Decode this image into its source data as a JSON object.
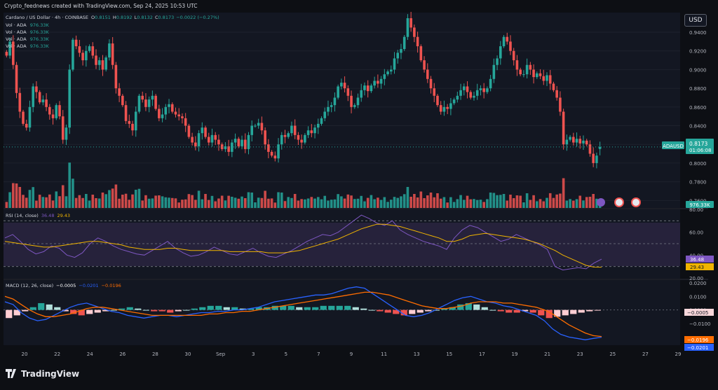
{
  "header": {
    "caption": "Crypto_feednews created with TradingView.com, Sep 24, 2025 10:53 UTC"
  },
  "currency_button": "USD",
  "legend": {
    "symbol": "Cardano / US Dollar · 4h · COINBASE",
    "o_label": "O",
    "o": "0.8151",
    "h_label": "H",
    "h": "0.8192",
    "l_label": "L",
    "l": "0.8132",
    "c_label": "C",
    "c": "0.8173",
    "change": "−0.0022 (−0.27%)",
    "vol_rows": [
      {
        "label": "Vol · ADA",
        "value": "976.33K"
      },
      {
        "label": "Vol · ADA",
        "value": "976.33K"
      },
      {
        "label": "Vol · ADA",
        "value": "976.33K"
      },
      {
        "label": "Vol · ADA",
        "value": "976.33K"
      }
    ]
  },
  "price_badge": {
    "symbol": "ADAUSD",
    "price": "0.8173",
    "countdown": "01:06:08"
  },
  "volume_badge": "976.33K",
  "rsi": {
    "label": "RSI (14, close)",
    "value1": "36.48",
    "value2": "29.43"
  },
  "macd": {
    "label": "MACD (12, 26, close)",
    "hist": "−0.0005",
    "macd": "−0.0201",
    "signal": "−0.0196"
  },
  "logo": "TradingView",
  "colors": {
    "up": "#26a69a",
    "down": "#ef5350",
    "rsi": "#7e57c2",
    "rsi_ma": "#f0b400",
    "macd": "#2962ff",
    "signal": "#ff6d00"
  },
  "chart_data": [
    {
      "type": "candlestick",
      "title": "Cardano / US Dollar · 4h · COINBASE",
      "x": [
        "20",
        "22",
        "24",
        "26",
        "28",
        "30",
        "Sep",
        "3",
        "5",
        "7",
        "9",
        "11",
        "13",
        "15",
        "17",
        "19",
        "21",
        "23",
        "25",
        "27",
        "29"
      ],
      "price_axis_ticks": [
        "0.9400",
        "0.9200",
        "0.9000",
        "0.8800",
        "0.8600",
        "0.8400",
        "0.8200",
        "0.8000",
        "0.7800",
        "0.7600"
      ],
      "ylim": [
        0.752,
        0.961
      ],
      "last_price": 0.8173,
      "closes": [
        0.915,
        0.93,
        0.905,
        0.875,
        0.855,
        0.842,
        0.838,
        0.86,
        0.882,
        0.876,
        0.865,
        0.868,
        0.86,
        0.852,
        0.848,
        0.862,
        0.85,
        0.825,
        0.838,
        0.9,
        0.932,
        0.925,
        0.918,
        0.91,
        0.92,
        0.925,
        0.915,
        0.905,
        0.91,
        0.9,
        0.913,
        0.928,
        0.905,
        0.88,
        0.872,
        0.862,
        0.845,
        0.842,
        0.835,
        0.855,
        0.872,
        0.868,
        0.86,
        0.868,
        0.872,
        0.858,
        0.848,
        0.852,
        0.86,
        0.863,
        0.855,
        0.852,
        0.85,
        0.848,
        0.84,
        0.828,
        0.822,
        0.818,
        0.832,
        0.838,
        0.828,
        0.822,
        0.83,
        0.825,
        0.82,
        0.815,
        0.818,
        0.812,
        0.822,
        0.826,
        0.818,
        0.825,
        0.815,
        0.83,
        0.84,
        0.84,
        0.843,
        0.835,
        0.82,
        0.812,
        0.808,
        0.805,
        0.82,
        0.83,
        0.828,
        0.832,
        0.84,
        0.83,
        0.825,
        0.822,
        0.83,
        0.835,
        0.832,
        0.838,
        0.842,
        0.848,
        0.855,
        0.86,
        0.862,
        0.87,
        0.882,
        0.886,
        0.88,
        0.872,
        0.86,
        0.862,
        0.87,
        0.878,
        0.883,
        0.877,
        0.883,
        0.888,
        0.885,
        0.89,
        0.895,
        0.898,
        0.9,
        0.912,
        0.918,
        0.922,
        0.935,
        0.955,
        0.945,
        0.935,
        0.925,
        0.91,
        0.9,
        0.89,
        0.88,
        0.872,
        0.862,
        0.855,
        0.86,
        0.858,
        0.864,
        0.868,
        0.872,
        0.878,
        0.882,
        0.876,
        0.87,
        0.872,
        0.878,
        0.88,
        0.876,
        0.88,
        0.89,
        0.905,
        0.912,
        0.925,
        0.935,
        0.93,
        0.92,
        0.91,
        0.9,
        0.895,
        0.895,
        0.905,
        0.9,
        0.892,
        0.896,
        0.893,
        0.888,
        0.894,
        0.885,
        0.878,
        0.87,
        0.855,
        0.82,
        0.825,
        0.828,
        0.822,
        0.826,
        0.821,
        0.824,
        0.82,
        0.81,
        0.8,
        0.808,
        0.8173
      ],
      "volume": {
        "last": "976.33K"
      }
    },
    {
      "type": "line",
      "title": "RSI (14, close)",
      "ylim": [
        20,
        80
      ],
      "ticks": [
        "80.00",
        "60.00",
        "40.00",
        "20.00"
      ],
      "levels": [
        70,
        50,
        30
      ],
      "series": [
        {
          "name": "RSI",
          "last": 36.48,
          "values": [
            55,
            58,
            52,
            45,
            41,
            43,
            48,
            46,
            40,
            38,
            42,
            50,
            55,
            52,
            48,
            45,
            43,
            41,
            40,
            44,
            48,
            52,
            46,
            42,
            39,
            40,
            43,
            47,
            44,
            41,
            40,
            43,
            46,
            42,
            39,
            38,
            41,
            44,
            48,
            52,
            55,
            58,
            57,
            60,
            65,
            70,
            75,
            72,
            68,
            66,
            70,
            62,
            58,
            55,
            52,
            50,
            48,
            45,
            55,
            62,
            66,
            64,
            60,
            56,
            52,
            54,
            58,
            55,
            52,
            49,
            45,
            30,
            27,
            28,
            29,
            28,
            33,
            36.48
          ]
        },
        {
          "name": "RSI-based MA",
          "last": 29.43,
          "values": [
            52,
            51,
            50,
            49,
            48,
            47,
            47,
            48,
            49,
            50,
            51,
            52,
            52,
            51,
            50,
            49,
            47,
            46,
            45,
            45,
            45,
            46,
            46,
            45,
            44,
            44,
            44,
            44,
            44,
            43,
            43,
            43,
            43,
            43,
            42,
            42,
            42,
            43,
            44,
            46,
            48,
            50,
            52,
            54,
            57,
            60,
            63,
            65,
            67,
            67,
            66,
            65,
            63,
            61,
            59,
            57,
            55,
            52,
            52,
            54,
            57,
            58,
            59,
            58,
            57,
            56,
            55,
            54,
            52,
            50,
            47,
            44,
            40,
            37,
            34,
            31,
            29.5,
            29.43
          ]
        }
      ]
    },
    {
      "type": "bar+line",
      "title": "MACD (12, 26, close)",
      "ylim": [
        -0.026,
        0.022
      ],
      "ticks": [
        "0.0200",
        "0.0100",
        "0.0000",
        "−0.0100"
      ],
      "series": [
        {
          "name": "Histogram",
          "last": -0.0005,
          "values": [
            -0.006,
            -0.004,
            -0.001,
            0.002,
            0.005,
            0.004,
            0.002,
            -0.001,
            -0.003,
            -0.004,
            -0.003,
            -0.002,
            -0.001,
            0.0,
            0.001,
            0.002,
            0.001,
            0.0,
            -0.001,
            -0.001,
            -0.002,
            -0.001,
            0.0,
            0.001,
            0.002,
            0.003,
            0.003,
            0.002,
            0.002,
            0.001,
            0.001,
            0.002,
            0.002,
            0.003,
            0.003,
            0.003,
            0.002,
            0.002,
            0.002,
            0.003,
            0.003,
            0.003,
            0.003,
            0.002,
            0.001,
            0.0,
            -0.001,
            -0.002,
            -0.003,
            -0.004,
            -0.003,
            -0.002,
            -0.001,
            0.0,
            0.001,
            0.002,
            0.004,
            0.005,
            0.004,
            0.002,
            0.0,
            -0.001,
            -0.002,
            -0.002,
            -0.001,
            -0.002,
            -0.004,
            -0.006,
            -0.005,
            -0.004,
            -0.003,
            -0.002,
            -0.001,
            -0.0005
          ]
        },
        {
          "name": "MACD",
          "last": -0.0201,
          "values": [
            0.006,
            0.004,
            -0.002,
            -0.006,
            -0.008,
            -0.007,
            -0.004,
            -0.001,
            0.002,
            0.004,
            0.005,
            0.003,
            0.001,
            -0.001,
            -0.002,
            -0.004,
            -0.005,
            -0.006,
            -0.005,
            -0.004,
            -0.004,
            -0.005,
            -0.004,
            -0.003,
            -0.002,
            -0.002,
            -0.001,
            -0.001,
            0.0,
            0.0,
            0.001,
            0.002,
            0.004,
            0.006,
            0.007,
            0.008,
            0.009,
            0.01,
            0.011,
            0.011,
            0.012,
            0.014,
            0.016,
            0.017,
            0.016,
            0.012,
            0.008,
            0.004,
            0.0,
            -0.004,
            -0.005,
            -0.004,
            -0.002,
            0.001,
            0.004,
            0.007,
            0.009,
            0.01,
            0.008,
            0.006,
            0.005,
            0.003,
            0.002,
            0.0,
            -0.002,
            -0.004,
            -0.008,
            -0.014,
            -0.018,
            -0.02,
            -0.021,
            -0.022,
            -0.021,
            -0.0201
          ]
        },
        {
          "name": "Signal",
          "last": -0.0196,
          "values": [
            0.01,
            0.008,
            0.004,
            0.0,
            -0.003,
            -0.005,
            -0.005,
            -0.004,
            -0.003,
            -0.001,
            0.001,
            0.002,
            0.002,
            0.001,
            0.0,
            -0.001,
            -0.002,
            -0.003,
            -0.004,
            -0.004,
            -0.004,
            -0.004,
            -0.004,
            -0.004,
            -0.004,
            -0.003,
            -0.003,
            -0.002,
            -0.002,
            -0.001,
            -0.001,
            0.0,
            0.001,
            0.002,
            0.003,
            0.004,
            0.005,
            0.006,
            0.007,
            0.008,
            0.009,
            0.01,
            0.011,
            0.012,
            0.013,
            0.013,
            0.012,
            0.011,
            0.009,
            0.007,
            0.005,
            0.003,
            0.002,
            0.001,
            0.001,
            0.002,
            0.003,
            0.005,
            0.006,
            0.006,
            0.006,
            0.005,
            0.005,
            0.004,
            0.003,
            0.002,
            0.0,
            -0.003,
            -0.007,
            -0.011,
            -0.014,
            -0.017,
            -0.019,
            -0.0196
          ]
        }
      ]
    }
  ]
}
